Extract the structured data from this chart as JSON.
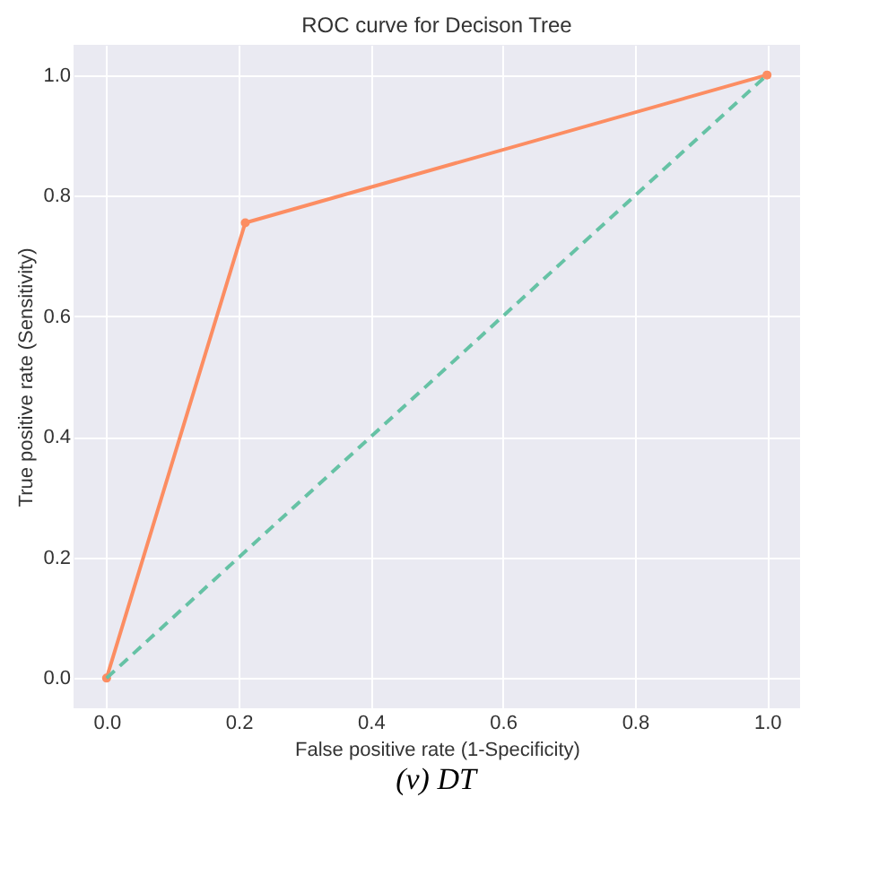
{
  "chart_data": {
    "type": "line",
    "title": "ROC curve for Decison Tree",
    "xlabel": "False positive rate (1-Specificity)",
    "ylabel": "True positive rate (Sensitivity)",
    "series": [
      {
        "x": [
          0.0,
          0.21,
          1.0
        ],
        "values": [
          0.0,
          0.755,
          1.0
        ],
        "color": "#fc8d62",
        "marker": "circle",
        "line_style": "solid"
      },
      {
        "x": [
          0.0,
          1.0
        ],
        "values": [
          0.0,
          1.0
        ],
        "color": "#66c2a5",
        "marker": "none",
        "line_style": "dashed"
      }
    ],
    "xlim": [
      -0.05,
      1.05
    ],
    "ylim": [
      -0.05,
      1.05
    ],
    "xticks": [
      {
        "value": 0,
        "label": "0.0"
      },
      0.2,
      0.4,
      0.6,
      0.8,
      {
        "value": 1,
        "label": "1.0"
      }
    ],
    "yticks": [
      {
        "value": 0,
        "label": "0.0"
      },
      0.2,
      0.4,
      0.6,
      0.8,
      {
        "value": 1,
        "label": "1.0"
      }
    ],
    "grid": true,
    "annotations": [
      "(v)  DT"
    ]
  }
}
